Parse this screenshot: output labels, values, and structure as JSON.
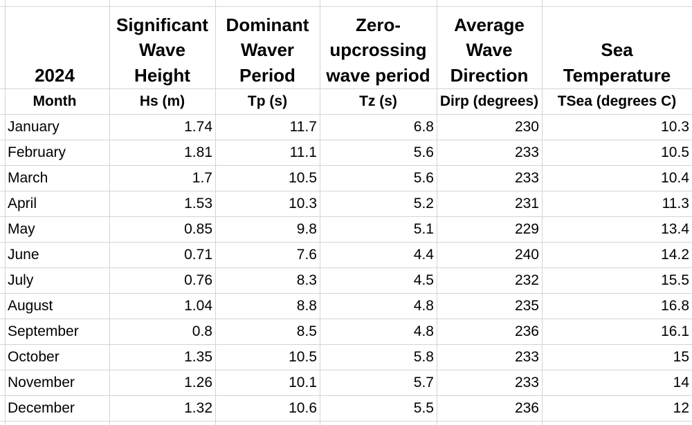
{
  "header_row": {
    "year": "2024",
    "columns": [
      [
        "Significant",
        "Wave",
        "Height"
      ],
      [
        "Dominant",
        "Waver",
        "Period"
      ],
      [
        "Zero-",
        "upcrossing",
        "wave period"
      ],
      [
        "Average",
        "Wave",
        "Direction"
      ],
      [
        "Sea",
        "Temperature"
      ]
    ]
  },
  "unit_row": [
    "Month",
    "Hs (m)",
    "Tp (s)",
    "Tz (s)",
    "Dirp (degrees)",
    "TSea (degrees C)"
  ],
  "rows": [
    [
      "January",
      "1.74",
      "11.7",
      "6.8",
      "230",
      "10.3"
    ],
    [
      "February",
      "1.81",
      "11.1",
      "5.6",
      "233",
      "10.5"
    ],
    [
      "March",
      "1.7",
      "10.5",
      "5.6",
      "233",
      "10.4"
    ],
    [
      "April",
      "1.53",
      "10.3",
      "5.2",
      "231",
      "11.3"
    ],
    [
      "May",
      "0.85",
      "9.8",
      "5.1",
      "229",
      "13.4"
    ],
    [
      "June",
      "0.71",
      "7.6",
      "4.4",
      "240",
      "14.2"
    ],
    [
      "July",
      "0.76",
      "8.3",
      "4.5",
      "232",
      "15.5"
    ],
    [
      "August",
      "1.04",
      "8.8",
      "4.8",
      "235",
      "16.8"
    ],
    [
      "September",
      "0.8",
      "8.5",
      "4.8",
      "236",
      "16.1"
    ],
    [
      "October",
      "1.35",
      "10.5",
      "5.8",
      "233",
      "15"
    ],
    [
      "November",
      "1.26",
      "10.1",
      "5.7",
      "233",
      "14"
    ],
    [
      "December",
      "1.32",
      "10.6",
      "5.5",
      "236",
      "12"
    ]
  ]
}
